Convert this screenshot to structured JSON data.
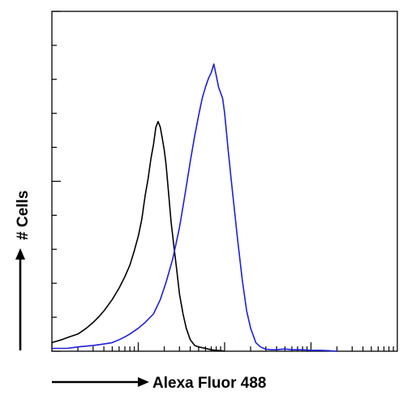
{
  "chart_data": {
    "type": "line",
    "title": "",
    "xlabel": "Alexa Fluor 488",
    "ylabel": "# Cells",
    "x_scale": "log",
    "xlim": [
      1,
      10000
    ],
    "ylim": [
      0,
      100
    ],
    "grid": false,
    "legend": "none",
    "series": [
      {
        "color": "#000000",
        "x": [
          1,
          1.3,
          1.6,
          2,
          2.5,
          3,
          3.5,
          4,
          5,
          6,
          7,
          8,
          9,
          10,
          11,
          12,
          13,
          14,
          15,
          16,
          17,
          18,
          19,
          20,
          21,
          22,
          24,
          26,
          28,
          30,
          33,
          36,
          40,
          45,
          50,
          60,
          70,
          80,
          90,
          100
        ],
        "values": [
          3,
          4,
          5,
          6,
          8,
          10,
          12,
          14,
          18,
          22,
          26,
          30,
          35,
          40,
          46,
          54,
          60,
          67,
          72,
          78,
          80,
          78,
          74,
          70,
          65,
          58,
          45,
          36,
          28,
          20,
          13,
          8,
          4,
          2,
          1.5,
          1,
          0.5,
          0.3,
          0.2,
          0
        ]
      },
      {
        "color": "#1f1fd6",
        "x": [
          1,
          1.5,
          2,
          3,
          4,
          5,
          6,
          7,
          8,
          10,
          12,
          15,
          18,
          21,
          25,
          30,
          35,
          40,
          45,
          50,
          55,
          60,
          65,
          70,
          75,
          80,
          85,
          90,
          95,
          100,
          110,
          120,
          140,
          160,
          180,
          200,
          230,
          260,
          300,
          350,
          400,
          500,
          600,
          800,
          1000,
          1300,
          1600,
          2000
        ],
        "values": [
          1,
          1,
          1.5,
          2,
          2.5,
          3,
          4,
          5,
          6,
          8,
          10,
          13,
          18,
          24,
          32,
          43,
          55,
          66,
          75,
          82,
          88,
          92,
          95,
          97,
          100,
          96,
          92,
          90,
          88,
          83,
          70,
          59,
          40,
          25,
          14,
          8,
          3,
          1.5,
          0.7,
          0.5,
          0.5,
          0.8,
          0.5,
          0.5,
          0.3,
          0.3,
          0.2,
          0
        ]
      }
    ]
  }
}
